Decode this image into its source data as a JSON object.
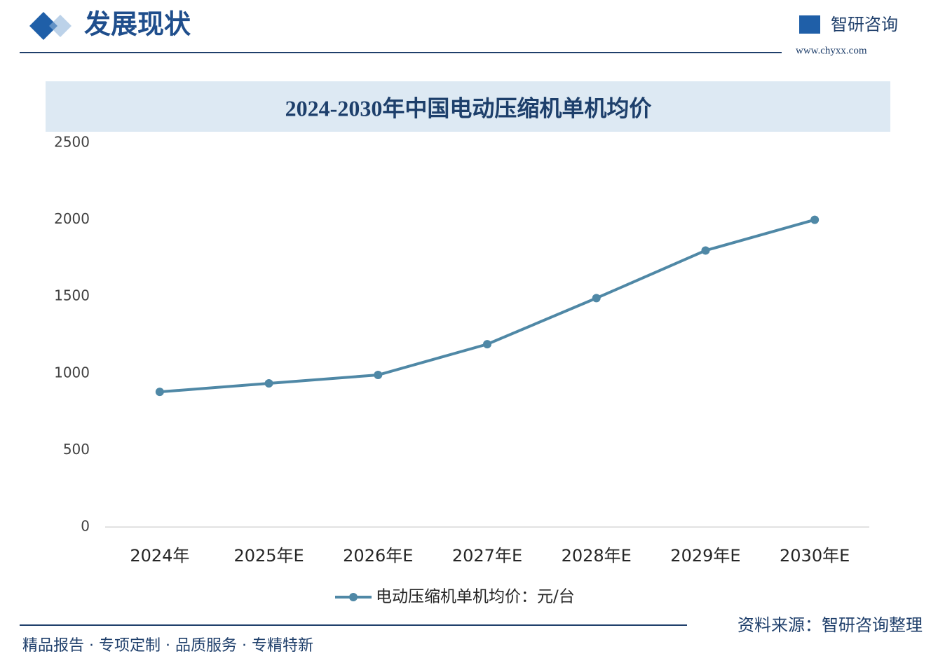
{
  "header": {
    "title": "发展现状",
    "brand": "智研咨询",
    "url": "www.chyxx.com"
  },
  "chart_data": {
    "type": "line",
    "title": "2024-2030年中国电动压缩机单机均价",
    "categories": [
      "2024年",
      "2025年E",
      "2026年E",
      "2027年E",
      "2028年E",
      "2029年E",
      "2030年E"
    ],
    "series": [
      {
        "name": "电动压缩机单机均价：元/台",
        "color": "#4f88a6",
        "values": [
          880,
          935,
          990,
          1190,
          1490,
          1800,
          2000
        ]
      }
    ],
    "ylim": [
      0,
      2500
    ],
    "yticks": [
      0,
      500,
      1000,
      1500,
      2000,
      2500
    ],
    "grid": false,
    "legend": "bottom"
  },
  "footer": {
    "slogan": "精品报告 · 专项定制 · 品质服务 · 专精特新",
    "source": "资料来源：智研咨询整理"
  }
}
